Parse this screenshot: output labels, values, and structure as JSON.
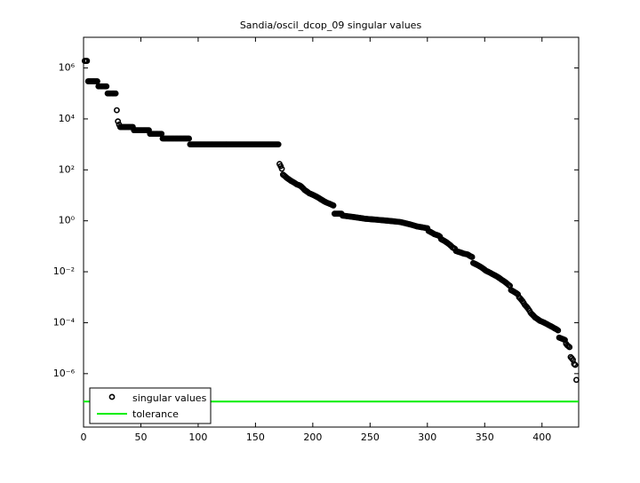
{
  "chart_data": {
    "type": "scatter",
    "title": "Sandia/oscil_dcop_09 singular values",
    "log_y": true,
    "box": true,
    "xlim": [
      0,
      432
    ],
    "xticks": [
      0,
      50,
      100,
      150,
      200,
      250,
      300,
      350,
      400
    ],
    "ylim": [
      8e-09,
      16000000.0
    ],
    "yticks": [
      {
        "value": 1e-06,
        "label": "10⁻⁶"
      },
      {
        "value": 0.0001,
        "label": "10⁻⁴"
      },
      {
        "value": 0.01,
        "label": "10⁻²"
      },
      {
        "value": 1,
        "label": "10⁰"
      },
      {
        "value": 100,
        "label": "10²"
      },
      {
        "value": 10000,
        "label": "10⁴"
      },
      {
        "value": 1000000,
        "label": "10⁶"
      }
    ],
    "legend": "lower left",
    "series": [
      {
        "name": "singular values",
        "color": "#000000",
        "x": [
          1,
          2,
          3,
          4,
          5,
          6,
          7,
          8,
          9,
          10,
          11,
          12,
          13,
          14,
          15,
          16,
          17,
          18,
          19,
          20,
          21,
          22,
          23,
          24,
          25,
          26,
          27,
          28,
          29,
          30,
          31,
          32,
          33,
          34,
          35,
          36,
          37,
          38,
          39,
          40,
          41,
          42,
          43,
          44,
          45,
          46,
          47,
          48,
          49,
          50,
          51,
          52,
          53,
          54,
          55,
          56,
          57,
          58,
          59,
          60,
          61,
          62,
          63,
          64,
          65,
          66,
          67,
          68,
          69,
          70,
          71,
          72,
          73,
          74,
          75,
          76,
          77,
          78,
          79,
          80,
          81,
          82,
          83,
          84,
          85,
          86,
          87,
          88,
          89,
          90,
          91,
          92,
          93,
          94,
          95,
          96,
          97,
          98,
          99,
          100,
          101,
          102,
          103,
          104,
          105,
          106,
          107,
          108,
          109,
          110,
          111,
          112,
          113,
          114,
          115,
          116,
          117,
          118,
          119,
          120,
          121,
          122,
          123,
          124,
          125,
          126,
          127,
          128,
          129,
          130,
          131,
          132,
          133,
          134,
          135,
          136,
          137,
          138,
          139,
          140,
          141,
          142,
          143,
          144,
          145,
          146,
          147,
          148,
          149,
          150,
          151,
          152,
          153,
          154,
          155,
          156,
          157,
          158,
          159,
          160,
          161,
          162,
          163,
          164,
          165,
          166,
          167,
          168,
          169,
          170,
          171,
          172,
          173,
          174,
          175,
          176,
          177,
          178,
          179,
          180,
          181,
          182,
          183,
          184,
          185,
          186,
          187,
          188,
          189,
          190,
          191,
          192,
          193,
          194,
          195,
          196,
          197,
          198,
          199,
          200,
          201,
          202,
          203,
          204,
          205,
          206,
          207,
          208,
          209,
          210,
          211,
          212,
          213,
          214,
          215,
          216,
          217,
          218,
          219,
          220,
          221,
          222,
          223,
          224,
          225,
          226,
          227,
          228,
          229,
          230,
          231,
          232,
          233,
          234,
          235,
          236,
          237,
          238,
          239,
          240,
          241,
          242,
          243,
          244,
          245,
          246,
          247,
          248,
          249,
          250,
          251,
          252,
          253,
          254,
          255,
          256,
          257,
          258,
          259,
          260,
          261,
          262,
          263,
          264,
          265,
          266,
          267,
          268,
          269,
          270,
          271,
          272,
          273,
          274,
          275,
          276,
          277,
          278,
          279,
          280,
          281,
          282,
          283,
          284,
          285,
          286,
          287,
          288,
          289,
          290,
          291,
          292,
          293,
          294,
          295,
          296,
          297,
          298,
          299,
          300,
          301,
          302,
          303,
          304,
          305,
          306,
          307,
          308,
          309,
          310,
          311,
          312,
          313,
          314,
          315,
          316,
          317,
          318,
          319,
          320,
          321,
          322,
          323,
          324,
          325,
          326,
          327,
          328,
          329,
          330,
          331,
          332,
          333,
          334,
          335,
          336,
          337,
          338,
          339,
          340,
          341,
          342,
          343,
          344,
          345,
          346,
          347,
          348,
          349,
          350,
          351,
          352,
          353,
          354,
          355,
          356,
          357,
          358,
          359,
          360,
          361,
          362,
          363,
          364,
          365,
          366,
          367,
          368,
          369,
          370,
          371,
          372,
          373,
          374,
          375,
          376,
          377,
          378,
          379,
          380,
          381,
          382,
          383,
          384,
          385,
          386,
          387,
          388,
          389,
          390,
          391,
          392,
          393,
          394,
          395,
          396,
          397,
          398,
          399,
          400,
          401,
          402,
          403,
          404,
          405,
          406,
          407,
          408,
          409,
          410,
          411,
          412,
          413,
          414,
          415,
          416,
          417,
          418,
          419,
          420,
          421,
          422,
          423,
          424,
          425,
          426,
          427,
          428,
          429,
          430
        ],
        "values": [
          1900000.0,
          1900000.0,
          1900000.0,
          300000.0,
          300000.0,
          300000.0,
          300000.0,
          300000.0,
          300000.0,
          300000.0,
          300000.0,
          300000.0,
          190000.0,
          190000.0,
          190000.0,
          190000.0,
          190000.0,
          190000.0,
          190000.0,
          190000.0,
          100000.0,
          100000.0,
          100000.0,
          100000.0,
          100000.0,
          100000.0,
          100000.0,
          100000.0,
          22000.0,
          8000.0,
          6000.0,
          4800,
          4800,
          4800,
          4800,
          4800,
          4800,
          4800,
          4800,
          4800,
          4800,
          4800,
          4800,
          3600,
          3600,
          3600,
          3600,
          3600,
          3600,
          3600,
          3600,
          3600,
          3600,
          3600,
          3600,
          3600,
          3600,
          2600,
          2600,
          2600,
          2600,
          2600,
          2600,
          2600,
          2600,
          2600,
          2600,
          2600,
          1700,
          1700,
          1700,
          1700,
          1700,
          1700,
          1700,
          1700,
          1700,
          1700,
          1700,
          1700,
          1700,
          1700,
          1700,
          1700,
          1700,
          1700,
          1700,
          1700,
          1700,
          1700,
          1700,
          1700,
          1000,
          1000,
          1000,
          1000,
          1000,
          1000,
          1000,
          1000,
          1000,
          1000,
          1000,
          1000,
          1000,
          1000,
          1000,
          1000,
          1000,
          1000,
          1000,
          1000,
          1000,
          1000,
          1000,
          1000,
          1000,
          1000,
          1000,
          1000,
          1000,
          1000,
          1000,
          1000,
          1000,
          1000,
          1000,
          1000,
          1000,
          1000,
          1000,
          1000,
          1000,
          1000,
          1000,
          1000,
          1000,
          1000,
          1000,
          1000,
          1000,
          1000,
          1000,
          1000,
          1000,
          1000,
          1000,
          1000,
          1000,
          1000,
          1000,
          1000,
          1000,
          1000,
          1000,
          1000,
          1000,
          1000,
          1000,
          1000,
          1000,
          1000,
          1000,
          1000,
          1000,
          1000,
          1000,
          1000,
          1000,
          1000,
          170,
          140,
          110,
          65,
          60,
          55,
          50,
          46,
          43,
          40,
          37,
          35,
          33,
          31,
          29,
          27,
          26,
          25,
          24,
          22,
          20,
          18,
          16,
          15,
          14,
          13,
          12,
          11.5,
          11,
          10.5,
          10,
          9.5,
          9,
          8.5,
          8,
          7.5,
          7,
          6.6,
          6.2,
          5.8,
          5.5,
          5.2,
          5,
          4.8,
          4.6,
          4.4,
          4.2,
          4,
          1.9,
          1.9,
          1.9,
          1.9,
          1.9,
          1.9,
          1.9,
          1.6,
          1.58,
          1.56,
          1.54,
          1.52,
          1.5,
          1.48,
          1.46,
          1.44,
          1.42,
          1.4,
          1.38,
          1.36,
          1.34,
          1.32,
          1.3,
          1.28,
          1.26,
          1.24,
          1.22,
          1.2,
          1.19,
          1.18,
          1.17,
          1.16,
          1.15,
          1.14,
          1.13,
          1.12,
          1.11,
          1.1,
          1.09,
          1.08,
          1.07,
          1.06,
          1.05,
          1.04,
          1.03,
          1.02,
          1.01,
          1,
          0.99,
          0.98,
          0.97,
          0.96,
          0.95,
          0.94,
          0.93,
          0.92,
          0.91,
          0.9,
          0.88,
          0.86,
          0.84,
          0.82,
          0.8,
          0.78,
          0.76,
          0.74,
          0.72,
          0.7,
          0.68,
          0.66,
          0.64,
          0.62,
          0.6,
          0.59,
          0.58,
          0.57,
          0.56,
          0.55,
          0.54,
          0.53,
          0.52,
          0.51,
          0.4,
          0.38,
          0.36,
          0.34,
          0.32,
          0.3,
          0.29,
          0.28,
          0.27,
          0.26,
          0.24,
          0.19,
          0.18,
          0.17,
          0.16,
          0.15,
          0.14,
          0.13,
          0.12,
          0.11,
          0.1,
          0.09,
          0.085,
          0.08,
          0.065,
          0.063,
          0.061,
          0.059,
          0.057,
          0.055,
          0.053,
          0.051,
          0.05,
          0.049,
          0.048,
          0.045,
          0.042,
          0.04,
          0.038,
          0.022,
          0.021,
          0.02,
          0.019,
          0.018,
          0.017,
          0.016,
          0.015,
          0.014,
          0.013,
          0.012,
          0.011,
          0.0105,
          0.01,
          0.0095,
          0.009,
          0.0085,
          0.008,
          0.0076,
          0.0072,
          0.0068,
          0.0064,
          0.006,
          0.0056,
          0.0052,
          0.0048,
          0.0045,
          0.0042,
          0.0039,
          0.0036,
          0.0033,
          0.003,
          0.0028,
          0.0019,
          0.0018,
          0.0017,
          0.0016,
          0.0015,
          0.0014,
          0.0013,
          0.001,
          0.0009,
          0.0008,
          0.0007,
          0.0006,
          0.0005,
          0.00045,
          0.0004,
          0.00035,
          0.0003,
          0.00025,
          0.00022,
          0.0002,
          0.00018,
          0.00016,
          0.00015,
          0.00014,
          0.00013,
          0.00012,
          0.000115,
          0.00011,
          0.000105,
          0.0001,
          9.5e-05,
          9e-05,
          8.5e-05,
          8e-05,
          7.6e-05,
          7.2e-05,
          6.8e-05,
          6.4e-05,
          6e-05,
          5.7e-05,
          5.4e-05,
          5e-05,
          2.6e-05,
          2.5e-05,
          2.4e-05,
          2.3e-05,
          2.2e-05,
          2.1e-05,
          1.5e-05,
          1.3e-05,
          1.2e-05,
          1.1e-05,
          4.5e-06,
          4e-06,
          3.5e-06,
          2.4e-06,
          2.2e-06,
          5.7e-07
        ]
      }
    ],
    "hlines": [
      {
        "name": "tolerance",
        "value": 8e-08,
        "color": "#00ee00"
      }
    ]
  }
}
